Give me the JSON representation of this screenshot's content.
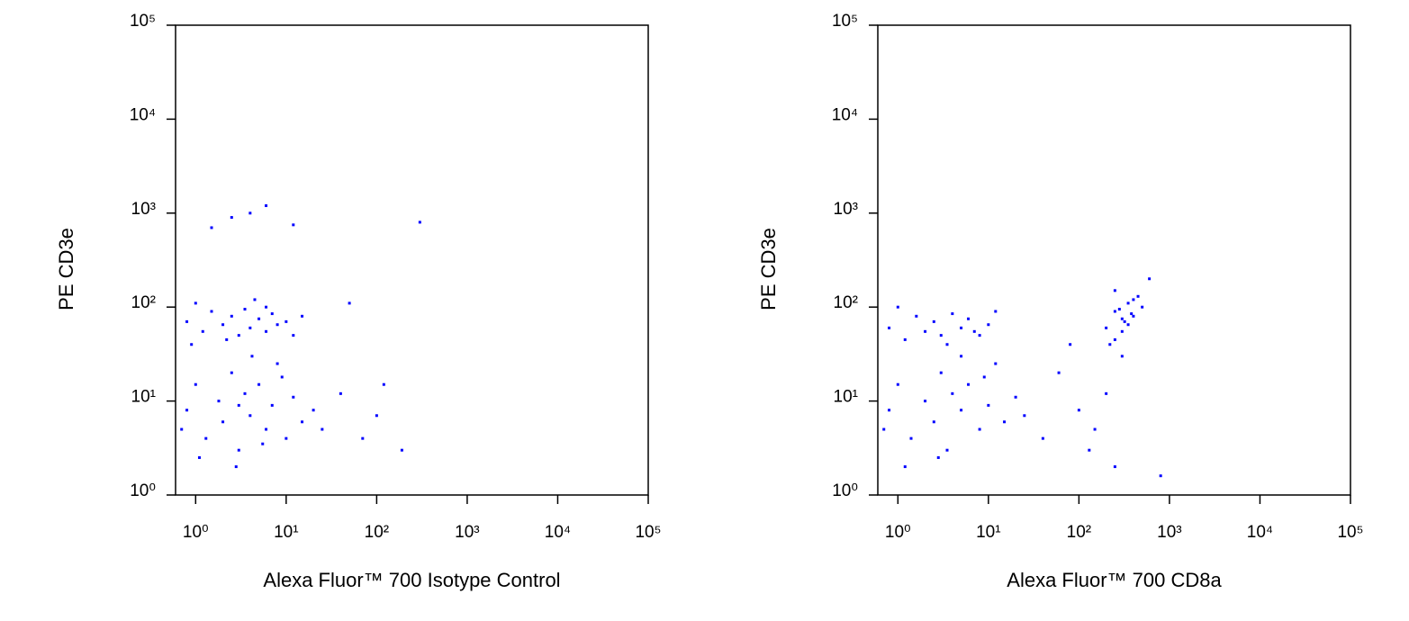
{
  "chart_data": [
    {
      "type": "scatter",
      "xlabel": "Alexa Fluor™ 700 Isotype Control",
      "ylabel": "PE CD3e",
      "xscale": "log",
      "yscale": "log",
      "color": "#0000ff",
      "xlim": [
        0.6,
        100000
      ],
      "ylim": [
        1,
        100000
      ],
      "xticks": [
        {
          "value": 1,
          "label": "10⁰"
        },
        {
          "value": 10,
          "label": "10¹"
        },
        {
          "value": 100,
          "label": "10²"
        },
        {
          "value": 1000,
          "label": "10³"
        },
        {
          "value": 10000,
          "label": "10⁴"
        },
        {
          "value": 100000,
          "label": "10⁵"
        }
      ],
      "yticks": [
        {
          "value": 1,
          "label": "10⁰"
        },
        {
          "value": 10,
          "label": "10¹"
        },
        {
          "value": 100,
          "label": "10²"
        },
        {
          "value": 1000,
          "label": "10³"
        },
        {
          "value": 10000,
          "label": "10⁴"
        },
        {
          "value": 100000,
          "label": "10⁵"
        }
      ],
      "x": [
        0.8,
        1.2,
        1.5,
        2,
        2.5,
        3,
        3.5,
        4,
        5,
        6,
        7,
        8,
        10,
        12,
        15,
        1,
        2.2,
        4.5,
        0.9,
        6,
        0.8,
        1,
        1.3,
        1.8,
        2,
        2.5,
        3,
        3.5,
        4,
        5,
        6,
        7,
        8,
        10,
        12,
        15,
        20,
        1.1,
        2.8,
        4.2,
        0.7,
        3,
        5.5,
        9,
        25,
        1.5,
        2.5,
        4,
        6,
        12,
        300,
        50,
        120,
        100,
        190,
        70,
        40
      ],
      "values": [
        70,
        55,
        90,
        65,
        80,
        50,
        95,
        60,
        75,
        55,
        85,
        65,
        70,
        50,
        80,
        110,
        45,
        120,
        40,
        100,
        8,
        15,
        4,
        10,
        6,
        20,
        3,
        12,
        7,
        15,
        5,
        9,
        25,
        4,
        11,
        6,
        8,
        2.5,
        2,
        30,
        5,
        9,
        3.5,
        18,
        5,
        700,
        900,
        1000,
        1200,
        750,
        800,
        110,
        15,
        7,
        3,
        4,
        12
      ]
    },
    {
      "type": "scatter",
      "xlabel": "Alexa Fluor™ 700 CD8a",
      "ylabel": "PE CD3e",
      "xscale": "log",
      "yscale": "log",
      "color": "#0000ff",
      "xlim": [
        0.6,
        100000
      ],
      "ylim": [
        1,
        100000
      ],
      "xticks": [
        {
          "value": 1,
          "label": "10⁰"
        },
        {
          "value": 10,
          "label": "10¹"
        },
        {
          "value": 100,
          "label": "10²"
        },
        {
          "value": 1000,
          "label": "10³"
        },
        {
          "value": 10000,
          "label": "10⁴"
        },
        {
          "value": 100000,
          "label": "10⁵"
        }
      ],
      "yticks": [
        {
          "value": 1,
          "label": "10⁰"
        },
        {
          "value": 10,
          "label": "10¹"
        },
        {
          "value": 100,
          "label": "10²"
        },
        {
          "value": 1000,
          "label": "10³"
        },
        {
          "value": 10000,
          "label": "10⁴"
        },
        {
          "value": 100000,
          "label": "10⁵"
        }
      ],
      "x": [
        0.8,
        1.2,
        1.6,
        2,
        2.5,
        3,
        4,
        5,
        6,
        8,
        10,
        12,
        1,
        3.5,
        7,
        0.8,
        1,
        1.4,
        2,
        2.5,
        3,
        3.5,
        4,
        5,
        6,
        8,
        10,
        12,
        15,
        20,
        1.2,
        2.8,
        5,
        0.7,
        9,
        25,
        40,
        200,
        250,
        300,
        350,
        400,
        300,
        250,
        450,
        500,
        350,
        280,
        380,
        220,
        320,
        600,
        300,
        400,
        250,
        60,
        100,
        150,
        200,
        130,
        80,
        250,
        800
      ],
      "values": [
        60,
        45,
        80,
        55,
        70,
        50,
        85,
        60,
        75,
        50,
        65,
        90,
        100,
        40,
        55,
        8,
        15,
        4,
        10,
        6,
        20,
        3,
        12,
        8,
        15,
        5,
        9,
        25,
        6,
        11,
        2,
        2.5,
        30,
        5,
        18,
        7,
        4,
        60,
        90,
        75,
        110,
        80,
        55,
        45,
        130,
        100,
        65,
        95,
        85,
        40,
        70,
        200,
        30,
        120,
        150,
        20,
        8,
        5,
        12,
        3,
        40,
        2,
        1.6
      ]
    }
  ]
}
